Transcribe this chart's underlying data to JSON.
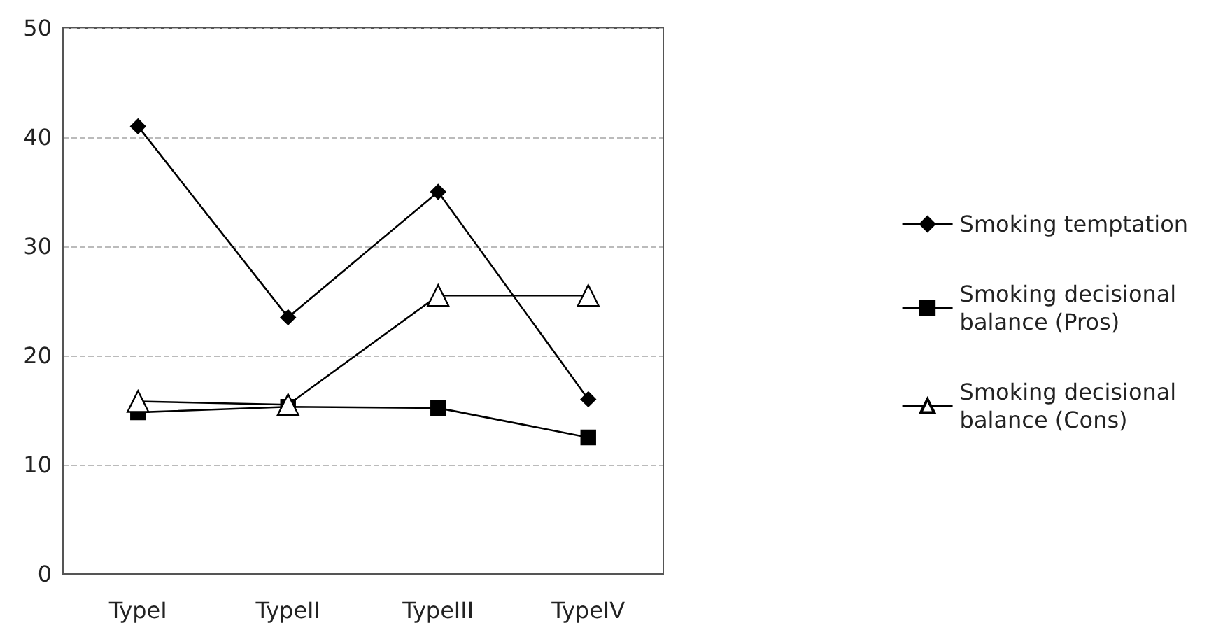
{
  "chart_data": {
    "type": "line",
    "categories": [
      "TypeI",
      "TypeII",
      "TypeIII",
      "TypeIV"
    ],
    "series": [
      {
        "name": "Smoking temptation",
        "color": "#000000",
        "marker": "diamond",
        "values": [
          41,
          23.5,
          35,
          16
        ]
      },
      {
        "name": "Smoking decisional\nbalance (Pros)",
        "color": "#000000",
        "marker": "square",
        "values": [
          14.8,
          15.3,
          15.2,
          12.5
        ]
      },
      {
        "name": "Smoking decisional\nbalance (Cons)",
        "color": "#000000",
        "marker": "triangle",
        "values": [
          15.8,
          15.5,
          25.5,
          25.5
        ]
      }
    ],
    "ylim": [
      0,
      50
    ],
    "yticks": [
      0,
      10,
      20,
      30,
      40,
      50
    ],
    "grid": "y",
    "legend": "right",
    "line_style": "solid"
  }
}
